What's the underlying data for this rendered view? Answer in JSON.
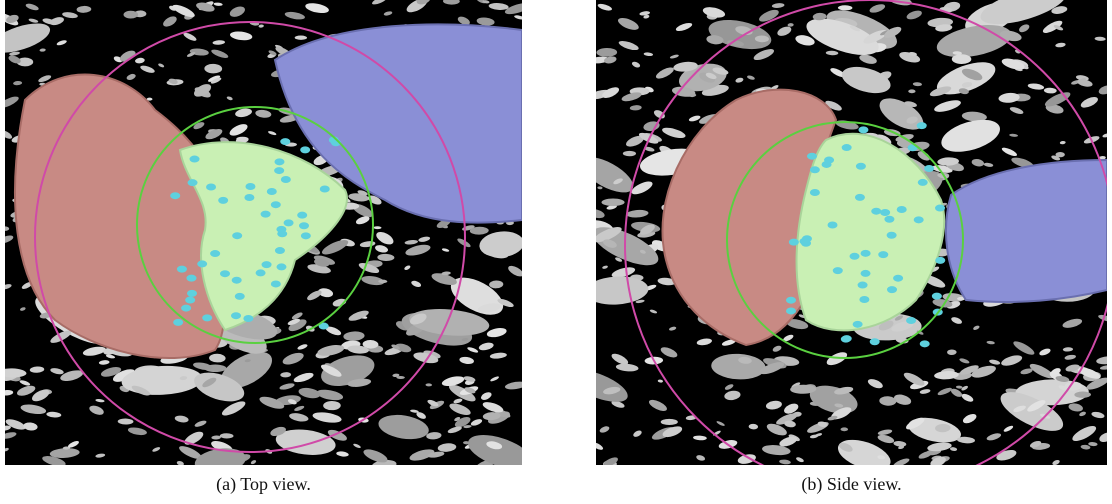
{
  "figure": {
    "panels": [
      {
        "caption": "(a) Top view."
      },
      {
        "caption": "(b) Side view."
      }
    ]
  }
}
